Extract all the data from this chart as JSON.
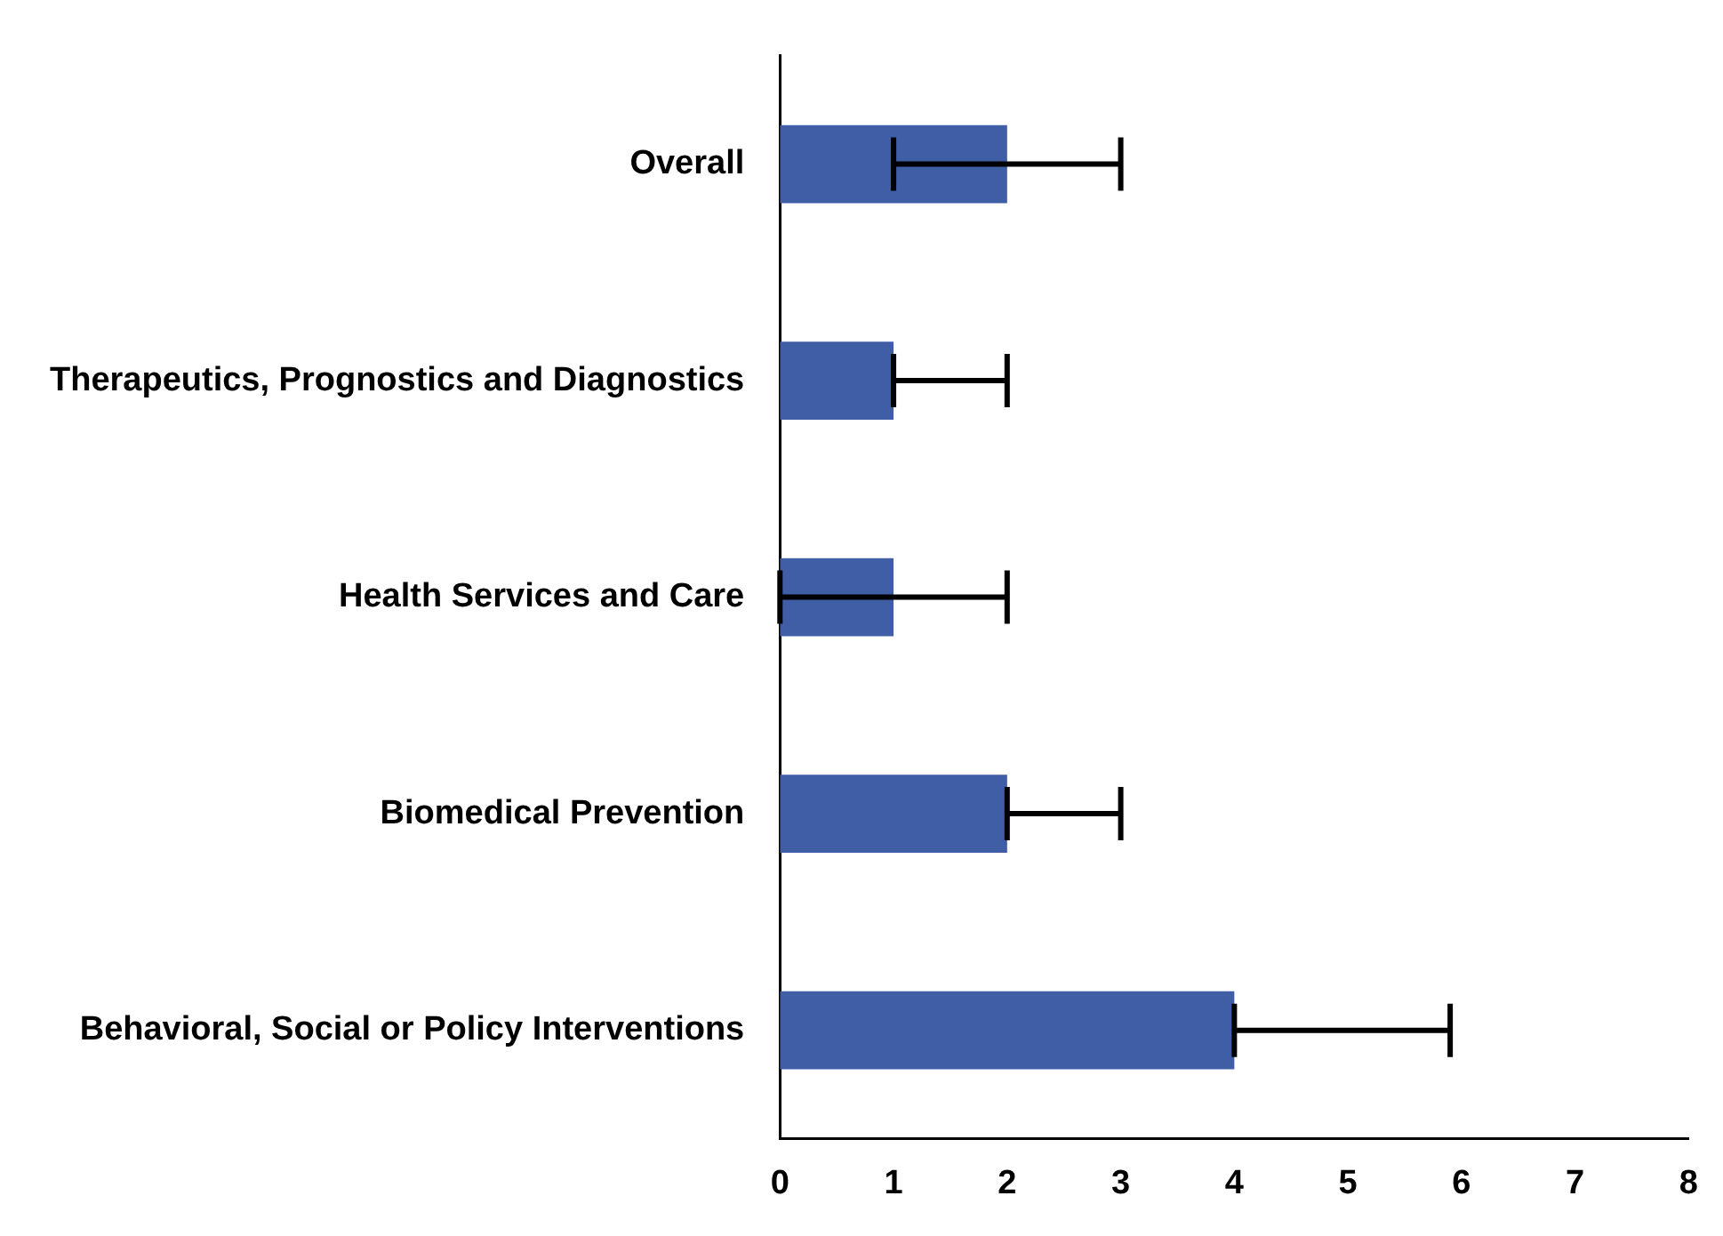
{
  "chart_data": {
    "type": "bar",
    "orientation": "horizontal",
    "categories": [
      "Overall",
      "Therapeutics, Prognostics and Diagnostics",
      "Health Services and Care",
      "Biomedical Prevention",
      "Behavioral, Social or Policy Interventions"
    ],
    "values": [
      2,
      1,
      1,
      2,
      4
    ],
    "errors": [
      [
        1,
        3
      ],
      [
        1,
        2
      ],
      [
        0,
        2
      ],
      [
        2,
        3
      ],
      [
        4,
        5.9
      ]
    ],
    "color": "#3f5ea6",
    "xlim": [
      0,
      8
    ],
    "xticks": [
      0,
      1,
      2,
      3,
      4,
      5,
      6,
      7,
      8
    ],
    "grid": false,
    "legend": false
  }
}
